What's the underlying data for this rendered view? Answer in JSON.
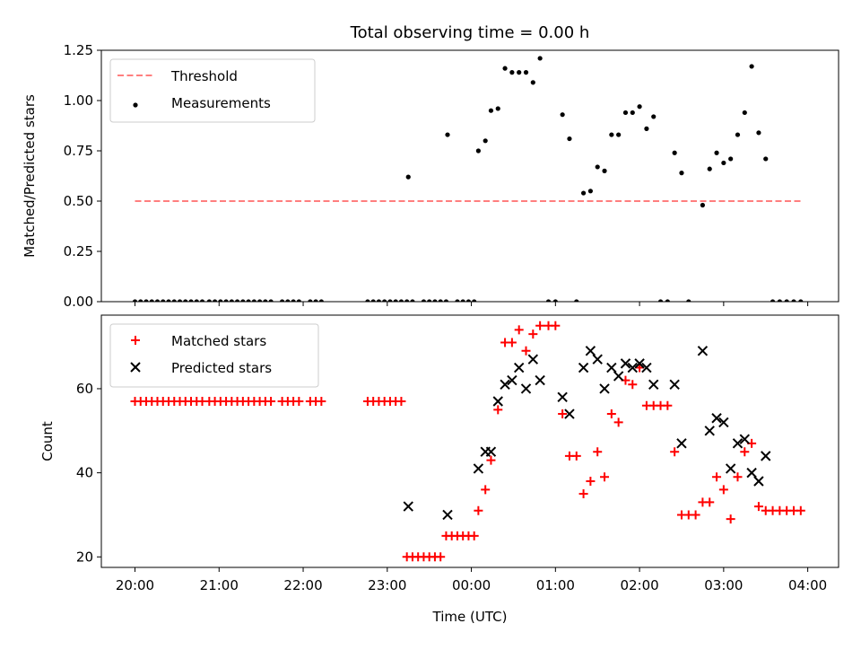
{
  "title": "Total observing time = 0.00 h",
  "x_label": "Time (UTC)",
  "top_ylabel": "Matched/Predicted stars",
  "bottom_ylabel": "Count",
  "chart_data": [
    {
      "type": "scatter",
      "title": "Total observing time = 0.00 h",
      "ylabel": "Matched/Predicted stars",
      "xlim": [
        "19:36",
        "04:22"
      ],
      "ylim": [
        0,
        1.25
      ],
      "yticks": [
        "0.00",
        "0.25",
        "0.50",
        "0.75",
        "1.00",
        "1.25"
      ],
      "xticks": [
        "20:00",
        "21:00",
        "22:00",
        "23:00",
        "00:00",
        "01:00",
        "02:00",
        "03:00",
        "04:00"
      ],
      "legend": "top-left",
      "series": [
        {
          "name": "Threshold",
          "kind": "line",
          "style": "dashed",
          "color": "#ff7f7f",
          "points": [
            [
              "20:00",
              0.5
            ],
            [
              "03:55",
              0.5
            ]
          ]
        },
        {
          "name": "Measurements",
          "kind": "scatter",
          "color": "#000000",
          "points": [
            [
              "20:00",
              0
            ],
            [
              "20:04",
              0
            ],
            [
              "20:08",
              0
            ],
            [
              "20:12",
              0
            ],
            [
              "20:16",
              0
            ],
            [
              "20:20",
              0
            ],
            [
              "20:24",
              0
            ],
            [
              "20:28",
              0
            ],
            [
              "20:32",
              0
            ],
            [
              "20:36",
              0
            ],
            [
              "20:40",
              0
            ],
            [
              "20:44",
              0
            ],
            [
              "20:48",
              0
            ],
            [
              "20:53",
              0
            ],
            [
              "20:57",
              0
            ],
            [
              "21:01",
              0
            ],
            [
              "21:05",
              0
            ],
            [
              "21:09",
              0
            ],
            [
              "21:13",
              0
            ],
            [
              "21:17",
              0
            ],
            [
              "21:21",
              0
            ],
            [
              "21:25",
              0
            ],
            [
              "21:29",
              0
            ],
            [
              "21:33",
              0
            ],
            [
              "21:37",
              0
            ],
            [
              "21:45",
              0
            ],
            [
              "21:49",
              0
            ],
            [
              "21:53",
              0
            ],
            [
              "21:57",
              0
            ],
            [
              "22:05",
              0
            ],
            [
              "22:09",
              0
            ],
            [
              "22:13",
              0
            ],
            [
              "22:46",
              0
            ],
            [
              "22:50",
              0
            ],
            [
              "22:54",
              0
            ],
            [
              "22:58",
              0
            ],
            [
              "23:02",
              0
            ],
            [
              "23:06",
              0
            ],
            [
              "23:10",
              0
            ],
            [
              "23:14",
              0
            ],
            [
              "23:18",
              0
            ],
            [
              "23:26",
              0
            ],
            [
              "23:30",
              0
            ],
            [
              "23:34",
              0
            ],
            [
              "23:38",
              0
            ],
            [
              "23:42",
              0
            ],
            [
              "23:50",
              0
            ],
            [
              "23:54",
              0
            ],
            [
              "23:58",
              0
            ],
            [
              "00:02",
              0
            ],
            [
              "23:15",
              0.62
            ],
            [
              "23:43",
              0.83
            ],
            [
              "00:05",
              0.75
            ],
            [
              "00:10",
              0.8
            ],
            [
              "00:14",
              0.95
            ],
            [
              "00:19",
              0.96
            ],
            [
              "00:24",
              1.16
            ],
            [
              "00:29",
              1.14
            ],
            [
              "00:34",
              1.14
            ],
            [
              "00:39",
              1.14
            ],
            [
              "00:44",
              1.09
            ],
            [
              "00:49",
              1.21
            ],
            [
              "00:55",
              0
            ],
            [
              "01:00",
              0
            ],
            [
              "01:05",
              0.93
            ],
            [
              "01:10",
              0.81
            ],
            [
              "01:15",
              0
            ],
            [
              "01:20",
              0.54
            ],
            [
              "01:25",
              0.55
            ],
            [
              "01:30",
              0.67
            ],
            [
              "01:35",
              0.65
            ],
            [
              "01:40",
              0.83
            ],
            [
              "01:45",
              0.83
            ],
            [
              "01:50",
              0.94
            ],
            [
              "01:55",
              0.94
            ],
            [
              "02:00",
              0.97
            ],
            [
              "02:05",
              0.86
            ],
            [
              "02:10",
              0.92
            ],
            [
              "02:15",
              0
            ],
            [
              "02:20",
              0
            ],
            [
              "02:25",
              0.74
            ],
            [
              "02:30",
              0.64
            ],
            [
              "02:35",
              0
            ],
            [
              "02:45",
              0.48
            ],
            [
              "02:50",
              0.66
            ],
            [
              "02:55",
              0.74
            ],
            [
              "03:00",
              0.69
            ],
            [
              "03:05",
              0.71
            ],
            [
              "03:10",
              0.83
            ],
            [
              "03:15",
              0.94
            ],
            [
              "03:20",
              1.17
            ],
            [
              "03:25",
              0.84
            ],
            [
              "03:30",
              0.71
            ],
            [
              "03:35",
              0
            ],
            [
              "03:40",
              0
            ],
            [
              "03:45",
              0
            ],
            [
              "03:50",
              0
            ],
            [
              "03:55",
              0
            ]
          ]
        }
      ]
    },
    {
      "type": "scatter",
      "xlabel": "Time (UTC)",
      "ylabel": "Count",
      "xlim": [
        "19:36",
        "04:22"
      ],
      "ylim": [
        17.5,
        77.5
      ],
      "yticks": [
        "20",
        "40",
        "60"
      ],
      "xticks": [
        "20:00",
        "21:00",
        "22:00",
        "23:00",
        "00:00",
        "01:00",
        "02:00",
        "03:00",
        "04:00"
      ],
      "legend": "top-left",
      "series": [
        {
          "name": "Matched stars",
          "marker": "+",
          "color": "#ff0000",
          "points": [
            [
              "20:00",
              57
            ],
            [
              "20:04",
              57
            ],
            [
              "20:08",
              57
            ],
            [
              "20:12",
              57
            ],
            [
              "20:16",
              57
            ],
            [
              "20:20",
              57
            ],
            [
              "20:24",
              57
            ],
            [
              "20:28",
              57
            ],
            [
              "20:32",
              57
            ],
            [
              "20:36",
              57
            ],
            [
              "20:40",
              57
            ],
            [
              "20:44",
              57
            ],
            [
              "20:48",
              57
            ],
            [
              "20:53",
              57
            ],
            [
              "20:57",
              57
            ],
            [
              "21:01",
              57
            ],
            [
              "21:05",
              57
            ],
            [
              "21:09",
              57
            ],
            [
              "21:13",
              57
            ],
            [
              "21:17",
              57
            ],
            [
              "21:21",
              57
            ],
            [
              "21:25",
              57
            ],
            [
              "21:29",
              57
            ],
            [
              "21:33",
              57
            ],
            [
              "21:37",
              57
            ],
            [
              "21:45",
              57
            ],
            [
              "21:49",
              57
            ],
            [
              "21:53",
              57
            ],
            [
              "21:57",
              57
            ],
            [
              "22:05",
              57
            ],
            [
              "22:09",
              57
            ],
            [
              "22:13",
              57
            ],
            [
              "22:46",
              57
            ],
            [
              "22:50",
              57
            ],
            [
              "22:54",
              57
            ],
            [
              "22:58",
              57
            ],
            [
              "23:02",
              57
            ],
            [
              "23:06",
              57
            ],
            [
              "23:10",
              57
            ],
            [
              "23:14",
              20
            ],
            [
              "23:18",
              20
            ],
            [
              "23:22",
              20
            ],
            [
              "23:26",
              20
            ],
            [
              "23:30",
              20
            ],
            [
              "23:34",
              20
            ],
            [
              "23:38",
              20
            ],
            [
              "23:42",
              25
            ],
            [
              "23:46",
              25
            ],
            [
              "23:50",
              25
            ],
            [
              "23:54",
              25
            ],
            [
              "23:58",
              25
            ],
            [
              "00:02",
              25
            ],
            [
              "00:05",
              31
            ],
            [
              "00:10",
              36
            ],
            [
              "00:14",
              43
            ],
            [
              "00:19",
              55
            ],
            [
              "00:24",
              71
            ],
            [
              "00:29",
              71
            ],
            [
              "00:34",
              74
            ],
            [
              "00:39",
              69
            ],
            [
              "00:44",
              73
            ],
            [
              "00:49",
              75
            ],
            [
              "00:55",
              75
            ],
            [
              "01:00",
              75
            ],
            [
              "01:05",
              54
            ],
            [
              "01:10",
              44
            ],
            [
              "01:15",
              44
            ],
            [
              "01:20",
              35
            ],
            [
              "01:25",
              38
            ],
            [
              "01:30",
              45
            ],
            [
              "01:35",
              39
            ],
            [
              "01:40",
              54
            ],
            [
              "01:45",
              52
            ],
            [
              "01:50",
              62
            ],
            [
              "01:55",
              61
            ],
            [
              "02:00",
              65
            ],
            [
              "02:05",
              56
            ],
            [
              "02:10",
              56
            ],
            [
              "02:15",
              56
            ],
            [
              "02:20",
              56
            ],
            [
              "02:25",
              45
            ],
            [
              "02:30",
              30
            ],
            [
              "02:35",
              30
            ],
            [
              "02:40",
              30
            ],
            [
              "02:45",
              33
            ],
            [
              "02:50",
              33
            ],
            [
              "02:55",
              39
            ],
            [
              "03:00",
              36
            ],
            [
              "03:05",
              29
            ],
            [
              "03:10",
              39
            ],
            [
              "03:15",
              45
            ],
            [
              "03:20",
              47
            ],
            [
              "03:25",
              32
            ],
            [
              "03:30",
              31
            ],
            [
              "03:35",
              31
            ],
            [
              "03:40",
              31
            ],
            [
              "03:45",
              31
            ],
            [
              "03:50",
              31
            ],
            [
              "03:55",
              31
            ]
          ]
        },
        {
          "name": "Predicted stars",
          "marker": "x",
          "color": "#000000",
          "points": [
            [
              "23:15",
              32
            ],
            [
              "23:43",
              30
            ],
            [
              "00:05",
              41
            ],
            [
              "00:10",
              45
            ],
            [
              "00:14",
              45
            ],
            [
              "00:19",
              57
            ],
            [
              "00:24",
              61
            ],
            [
              "00:29",
              62
            ],
            [
              "00:34",
              65
            ],
            [
              "00:39",
              60
            ],
            [
              "00:44",
              67
            ],
            [
              "00:49",
              62
            ],
            [
              "01:05",
              58
            ],
            [
              "01:10",
              54
            ],
            [
              "01:20",
              65
            ],
            [
              "01:25",
              69
            ],
            [
              "01:30",
              67
            ],
            [
              "01:35",
              60
            ],
            [
              "01:40",
              65
            ],
            [
              "01:45",
              63
            ],
            [
              "01:50",
              66
            ],
            [
              "01:55",
              65
            ],
            [
              "02:00",
              66
            ],
            [
              "02:05",
              65
            ],
            [
              "02:10",
              61
            ],
            [
              "02:25",
              61
            ],
            [
              "02:30",
              47
            ],
            [
              "02:45",
              69
            ],
            [
              "02:50",
              50
            ],
            [
              "02:55",
              53
            ],
            [
              "03:00",
              52
            ],
            [
              "03:05",
              41
            ],
            [
              "03:10",
              47
            ],
            [
              "03:15",
              48
            ],
            [
              "03:20",
              40
            ],
            [
              "03:25",
              38
            ],
            [
              "03:30",
              44
            ]
          ]
        }
      ]
    }
  ]
}
